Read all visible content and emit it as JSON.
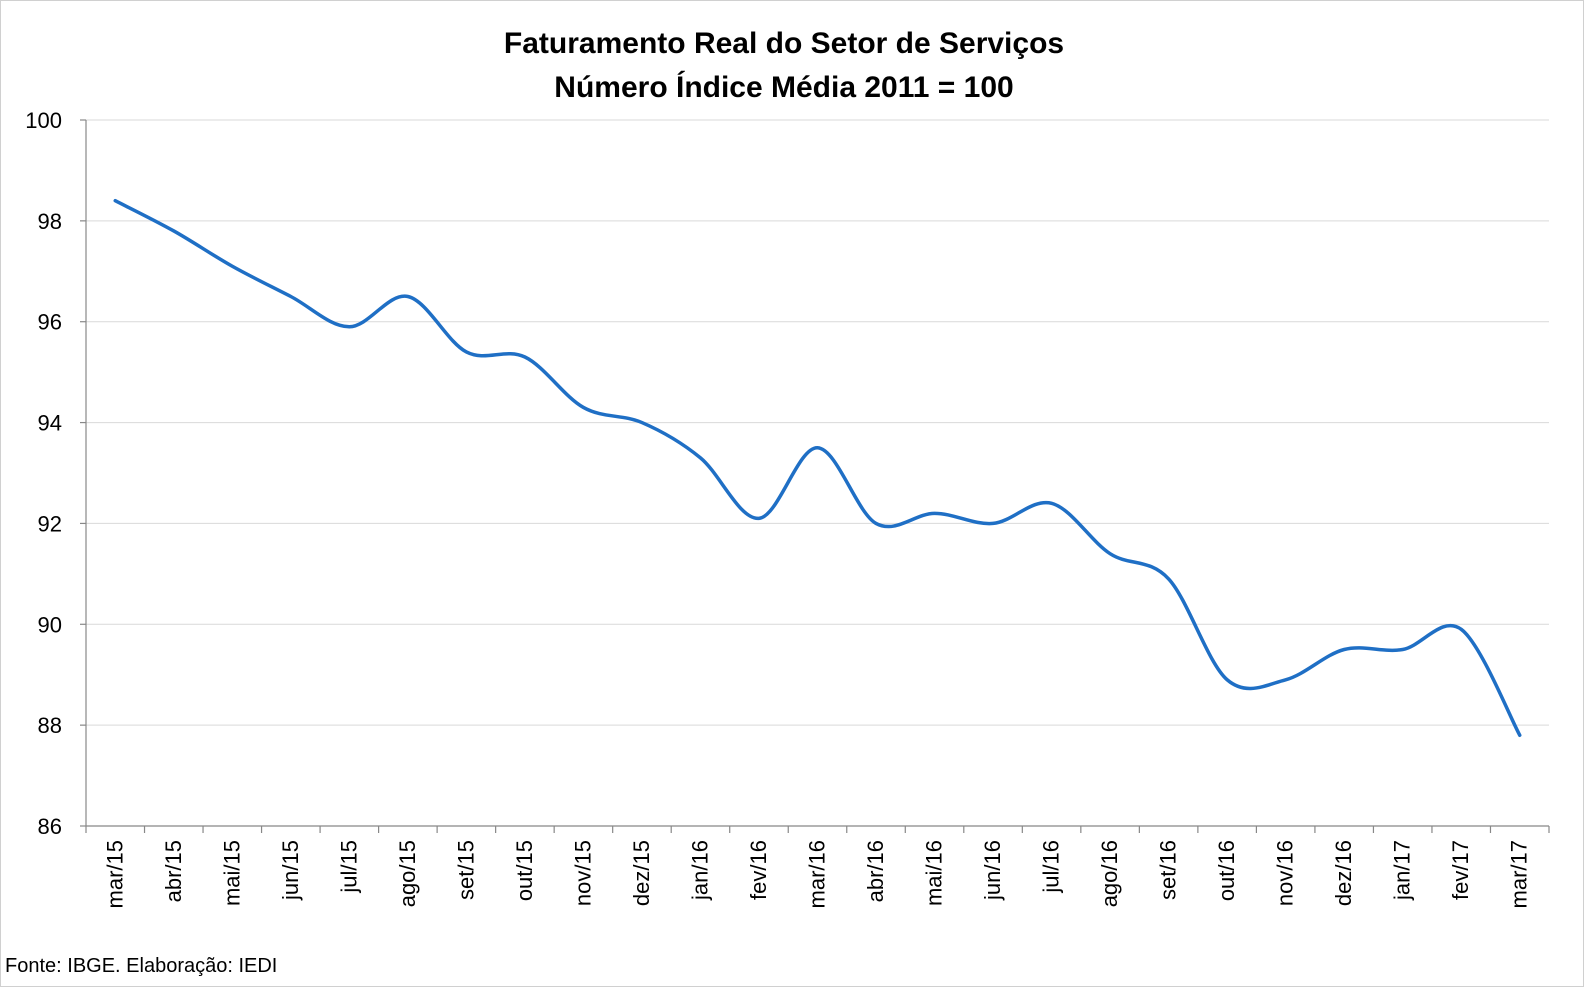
{
  "chart_data": {
    "type": "line",
    "title": "Faturamento Real do Setor de Serviços",
    "subtitle": "Número Índice Média 2011 = 100",
    "xlabel": "",
    "ylabel": "",
    "ylim": [
      86,
      100
    ],
    "yticks": [
      "100",
      "98",
      "96",
      "94",
      "92",
      "90",
      "88",
      "86"
    ],
    "grid": true,
    "legend": "none",
    "categories": [
      "mar/15",
      "abr/15",
      "mai/15",
      "jun/15",
      "jul/15",
      "ago/15",
      "set/15",
      "out/15",
      "nov/15",
      "dez/15",
      "jan/16",
      "fev/16",
      "mar/16",
      "abr/16",
      "mai/16",
      "jun/16",
      "jul/16",
      "ago/16",
      "set/16",
      "out/16",
      "nov/16",
      "dez/16",
      "jan/17",
      "fev/17",
      "mar/17"
    ],
    "series": [
      {
        "color": "#1F6FC5",
        "values": [
          98.4,
          97.8,
          97.1,
          96.5,
          95.9,
          96.5,
          95.4,
          95.3,
          94.3,
          94.0,
          93.3,
          92.1,
          93.5,
          92.0,
          92.2,
          92.0,
          92.4,
          91.4,
          90.9,
          88.9,
          88.9,
          89.5,
          89.5,
          89.9,
          87.8
        ]
      }
    ]
  },
  "source": "Fonte: IBGE. Elaboração: IEDI"
}
